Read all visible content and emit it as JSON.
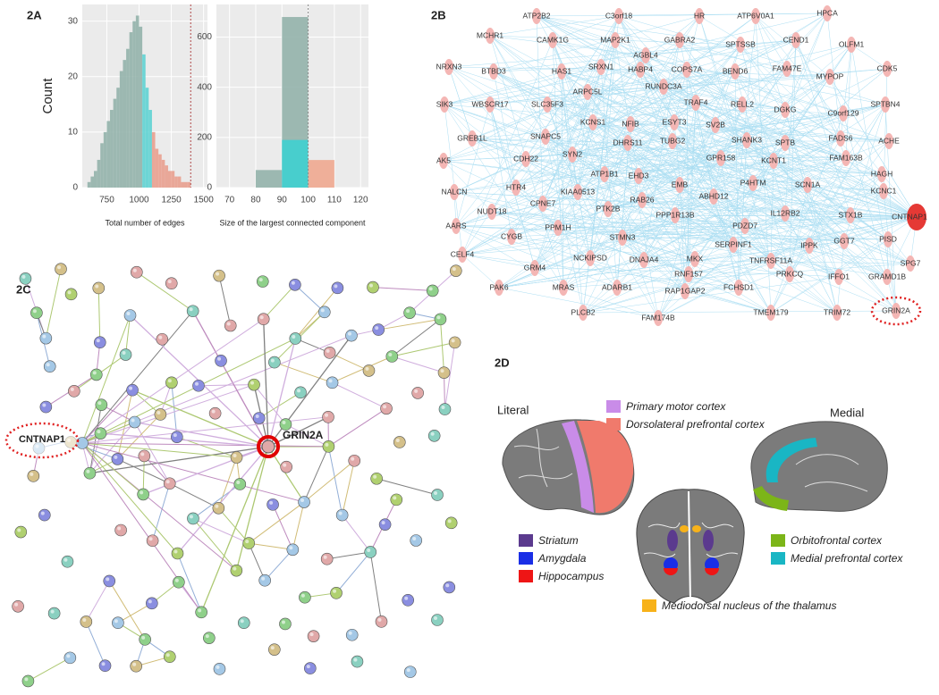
{
  "panels": {
    "a": "2A",
    "b": "2B",
    "c": "2C",
    "d": "2D"
  },
  "chart_data": [
    {
      "type": "histogram",
      "ylabel": "Count",
      "xlabel": "Total number of edges",
      "bins": [
        600,
        625,
        650,
        675,
        700,
        725,
        750,
        775,
        800,
        825,
        850,
        875,
        900,
        925,
        950,
        975,
        1000,
        1025,
        1050,
        1075,
        1100,
        1125,
        1150,
        1175,
        1200,
        1225,
        1250,
        1275,
        1300,
        1325,
        1350,
        1375,
        1400
      ],
      "values": [
        1,
        2,
        3,
        5,
        8,
        10,
        12,
        14,
        16,
        18,
        21,
        23,
        25,
        28,
        30,
        31,
        29,
        24,
        18,
        14,
        10,
        7,
        6,
        5,
        4,
        3,
        3,
        2,
        2,
        1,
        1,
        1
      ],
      "colors": [
        "#93b3ab",
        "#93b3ab",
        "#93b3ab",
        "#93b3ab",
        "#93b3ab",
        "#93b3ab",
        "#93b3ab",
        "#93b3ab",
        "#93b3ab",
        "#93b3ab",
        "#93b3ab",
        "#93b3ab",
        "#93b3ab",
        "#93b3ab",
        "#93b3ab",
        "#93b3ab",
        "#93b3ab",
        "#5fd3d3",
        "#5fd3d3",
        "#5fd3d3",
        "#e9a08f",
        "#e9a08f",
        "#e9a08f",
        "#e9a08f",
        "#e9a08f",
        "#e9a08f",
        "#e9a08f",
        "#e9a08f",
        "#e9a08f",
        "#e9a08f",
        "#e9a08f",
        "#e9a08f"
      ],
      "xlim": [
        560,
        1530
      ],
      "xticks": [
        750,
        1000,
        1250,
        1500
      ],
      "ylim": [
        0,
        33
      ],
      "yticks": [
        0,
        10,
        20,
        30
      ],
      "vline": {
        "value": 1400,
        "color": "#b04848"
      },
      "grid": true
    },
    {
      "type": "histogram",
      "xlabel": "Size of the largest connected component",
      "series": [
        {
          "color": "#93b3ab",
          "bins": [
            80,
            90,
            100
          ],
          "values": [
            70,
            680
          ]
        },
        {
          "color": "#3fd0d0",
          "bins": [
            90,
            100
          ],
          "values": [
            190
          ]
        },
        {
          "color": "#f0a890",
          "bins": [
            100,
            110
          ],
          "values": [
            110
          ]
        }
      ],
      "xlim": [
        65,
        123
      ],
      "xticks": [
        70,
        80,
        90,
        100,
        110,
        120
      ],
      "ylim": [
        0,
        730
      ],
      "yticks": [
        0,
        200,
        400,
        600
      ],
      "vline": {
        "value": 100,
        "color": "#8a8a8a"
      },
      "grid": true
    }
  ],
  "network_2b": {
    "node_color": "#f4b6b4",
    "edge_color": "#8fd3ee",
    "nodes": [
      "ATP2B2",
      "C3orf18",
      "HR",
      "ATP6V0A1",
      "HPCA",
      "MCHR1",
      "CAMK1G",
      "MAP2K1",
      "GABRA2",
      "SPTSSB",
      "CEND1",
      "OLFM1",
      "AGBL4",
      "NRXN3",
      "BTBD3",
      "HAS1",
      "SRXN1",
      "HABP4",
      "COPS7A",
      "BEND6",
      "FAM47E",
      "MYPOP",
      "CDK5",
      "RUNDC3A",
      "ARPC5L",
      "SIK3",
      "WBSCR17",
      "SLC35F3",
      "TRAF4",
      "RELL2",
      "DGKG",
      "C9orf129",
      "SPTBN4",
      "KCNS1",
      "NFIB",
      "ESYT3",
      "SV2B",
      "GREB1L",
      "SNAPC5",
      "DHRS11",
      "TUBG2",
      "SHANK3",
      "SPTB",
      "FADS6",
      "ACHE",
      "AK5",
      "CDH22",
      "SYN2",
      "GPR158",
      "KCNT1",
      "FAM163B",
      "ATP1B1",
      "EHD3",
      "HAGH",
      "NALCN",
      "HTR4",
      "KIAA0513",
      "EMB",
      "P4HTM",
      "SCN1A",
      "CPNE7",
      "ABHD12",
      "KCNC1",
      "RAB26",
      "NUDT18",
      "PTK2B",
      "PPP1R13B",
      "IL12RB2",
      "STX1B",
      "AARS",
      "PPM1H",
      "PDZD7",
      "CYGB",
      "SERPINF1",
      "PISD",
      "STMN3",
      "IPPK",
      "GGT7",
      "CELF4",
      "NCKIPSD",
      "DNAJA4",
      "MKX",
      "TNFRSF11A",
      "GRM4",
      "RNF157",
      "PRKCQ",
      "IFFO1",
      "GRAMD1B",
      "SPG7",
      "PAK6",
      "MRAS",
      "ADARB1",
      "RAP1GAP2",
      "FCHSD1",
      "PLCB2",
      "FAM174B",
      "TMEM179",
      "TRIM72"
    ],
    "hub": {
      "label": "CNTNAP1",
      "color": "#e53935"
    },
    "circled": {
      "label": "GRIN2A"
    }
  },
  "network_2c": {
    "hub": "GRIN2A",
    "circled": "CNTNAP1"
  },
  "brain_2d": {
    "views": [
      "Literal",
      "Medial"
    ],
    "regions": [
      {
        "label": "Primary motor cortex",
        "color": "#c98ce8"
      },
      {
        "label": "Dorsolateral prefrontal cortex",
        "color": "#f07a6c"
      },
      {
        "label": "Striatum",
        "color": "#5b3a8e"
      },
      {
        "label": "Amygdala",
        "color": "#1a2ee6"
      },
      {
        "label": "Hippocampus",
        "color": "#ee1515"
      },
      {
        "label": "Orbitofrontal cortex",
        "color": "#7cb518"
      },
      {
        "label": "Medial prefrontal cortex",
        "color": "#19b6c4"
      },
      {
        "label": "Mediodorsal nucleus of the thalamus",
        "color": "#f7b21a"
      }
    ]
  }
}
